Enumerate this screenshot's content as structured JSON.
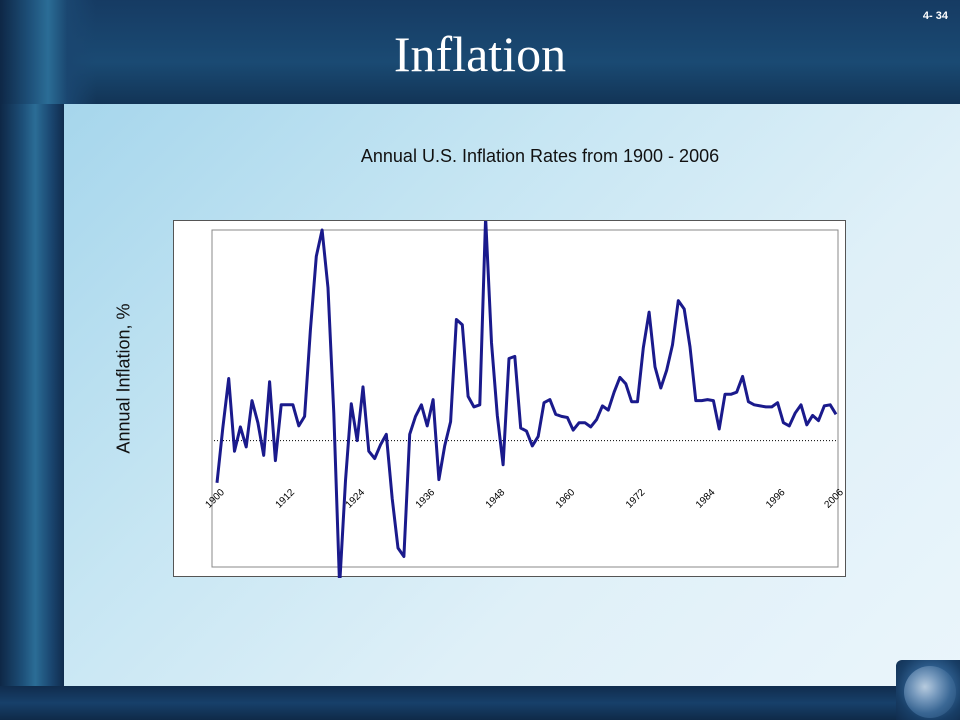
{
  "slide": {
    "title": "Inflation",
    "number": "4- 34"
  },
  "colors": {
    "frame": "#14355a",
    "line": "#1a1a8c",
    "panel": "#d4ebf6"
  },
  "icons": [
    "globe-icon"
  ],
  "chart_data": {
    "type": "line",
    "title": "Annual U.S. Inflation Rates from 1900 - 2006",
    "xlabel": "",
    "ylabel": "Annual Inflation, %",
    "xlim": [
      1900,
      2006
    ],
    "ylim": [
      -12,
      20
    ],
    "xticks": [
      1900,
      1912,
      1924,
      1936,
      1948,
      1960,
      1972,
      1984,
      1996,
      2006
    ],
    "grid": false,
    "legend": "none",
    "series": [
      {
        "name": "",
        "x": [
          1900,
          1901,
          1902,
          1903,
          1904,
          1905,
          1906,
          1907,
          1908,
          1909,
          1910,
          1911,
          1912,
          1913,
          1914,
          1915,
          1916,
          1917,
          1918,
          1919,
          1920,
          1921,
          1922,
          1923,
          1924,
          1925,
          1926,
          1927,
          1928,
          1929,
          1930,
          1931,
          1932,
          1933,
          1934,
          1935,
          1936,
          1937,
          1938,
          1939,
          1940,
          1941,
          1942,
          1943,
          1944,
          1945,
          1946,
          1947,
          1948,
          1949,
          1950,
          1951,
          1952,
          1953,
          1954,
          1955,
          1956,
          1957,
          1958,
          1959,
          1960,
          1961,
          1962,
          1963,
          1964,
          1965,
          1966,
          1967,
          1968,
          1969,
          1970,
          1971,
          1972,
          1973,
          1974,
          1975,
          1976,
          1977,
          1978,
          1979,
          1980,
          1981,
          1982,
          1983,
          1984,
          1985,
          1986,
          1987,
          1988,
          1989,
          1990,
          1991,
          1992,
          1993,
          1994,
          1995,
          1996,
          1997,
          1998,
          1999,
          2000,
          2001,
          2002,
          2003,
          2004,
          2005,
          2006
        ],
        "values": [
          -4.0,
          1.2,
          5.9,
          -1.0,
          1.3,
          -0.6,
          3.8,
          1.7,
          -1.4,
          5.6,
          -1.9,
          3.4,
          3.4,
          3.4,
          1.4,
          2.3,
          10.5,
          17.5,
          20.0,
          14.5,
          2.6,
          -13.8,
          -3.8,
          3.5,
          0.0,
          5.1,
          -1.0,
          -1.7,
          -0.4,
          0.6,
          -5.5,
          -10.2,
          -11.0,
          0.6,
          2.3,
          3.4,
          1.4,
          3.9,
          -3.7,
          -0.5,
          1.8,
          11.5,
          11.0,
          4.2,
          3.2,
          3.4,
          21.2,
          9.3,
          2.4,
          -2.3,
          7.8,
          8.0,
          1.2,
          0.9,
          -0.5,
          0.4,
          3.6,
          3.9,
          2.5,
          2.3,
          2.2,
          1.0,
          1.7,
          1.7,
          1.3,
          2.0,
          3.3,
          2.9,
          4.6,
          6.0,
          5.4,
          3.7,
          3.7,
          8.8,
          12.2,
          7.0,
          5.0,
          6.7,
          9.1,
          13.3,
          12.5,
          8.9,
          3.8,
          3.8,
          3.9,
          3.8,
          1.1,
          4.4,
          4.4,
          4.6,
          6.1,
          3.7,
          3.4,
          3.3,
          3.2,
          3.2,
          3.6,
          1.7,
          1.4,
          2.6,
          3.4,
          1.5,
          2.4,
          1.9,
          3.3,
          3.4,
          2.5
        ]
      }
    ]
  }
}
